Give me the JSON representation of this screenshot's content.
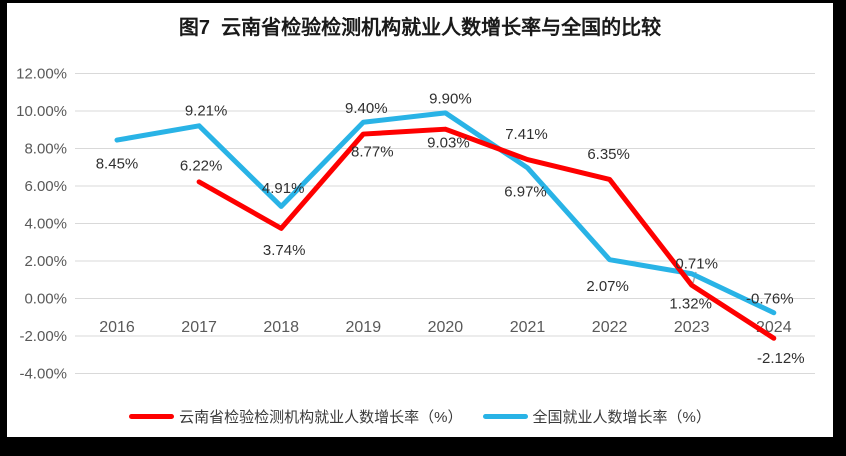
{
  "chart_data": {
    "type": "line",
    "title": "图7  云南省检验检测机构就业人数增长率与全国的比较",
    "categories": [
      "2016",
      "2017",
      "2018",
      "2019",
      "2020",
      "2021",
      "2022",
      "2023",
      "2024"
    ],
    "y_axis": {
      "ticks": [
        "12.00%",
        "10.00%",
        "8.00%",
        "6.00%",
        "4.00%",
        "2.00%",
        "0.00%",
        "-2.00%",
        "-4.00%"
      ],
      "max": 12,
      "min": -4,
      "step": 2
    },
    "grid": "horizontal-only",
    "legend_position": "bottom-center",
    "series": [
      {
        "name": "云南省检验检测机构就业人数增长率（%）",
        "color": "#fe0000",
        "values": [
          null,
          6.22,
          3.74,
          8.77,
          9.03,
          7.41,
          6.35,
          0.71,
          -2.12
        ],
        "labels": [
          "",
          "6.22%",
          "3.74%",
          "8.77%",
          "9.03%",
          "7.41%",
          "6.35%",
          "0.71%",
          "-2.12%"
        ],
        "label_offsets": [
          [
            0,
            0
          ],
          [
            2,
            -16
          ],
          [
            3,
            22
          ],
          [
            9,
            18
          ],
          [
            3,
            14
          ],
          [
            -1,
            -25
          ],
          [
            -1,
            -25
          ],
          [
            5,
            -21
          ],
          [
            7,
            20
          ]
        ]
      },
      {
        "name": "全国就业人数增长率（%）",
        "color": "#29b3e6",
        "values": [
          8.45,
          9.21,
          4.91,
          9.4,
          9.9,
          6.97,
          2.07,
          1.32,
          -0.76
        ],
        "labels": [
          "8.45%",
          "9.21%",
          "4.91%",
          "9.40%",
          "9.90%",
          "6.97%",
          "2.07%",
          "1.32%",
          "-0.76%"
        ],
        "label_offsets": [
          [
            0,
            24
          ],
          [
            7,
            -15
          ],
          [
            2,
            -18
          ],
          [
            3,
            -14
          ],
          [
            5,
            -14
          ],
          [
            -2,
            24
          ],
          [
            -2,
            27
          ],
          [
            -1,
            30
          ],
          [
            -4,
            -14
          ]
        ]
      }
    ],
    "annotations": {
      "leader_line": {
        "from": [
          689,
          269
        ],
        "to": [
          686,
          280
        ],
        "color": "#a6a6a6"
      }
    },
    "colors": {
      "grid": "#d9d9d9",
      "axis_text": "#595959",
      "data_label": "#303030",
      "panel_bg": "#ffffff",
      "frame": "#000000"
    }
  }
}
